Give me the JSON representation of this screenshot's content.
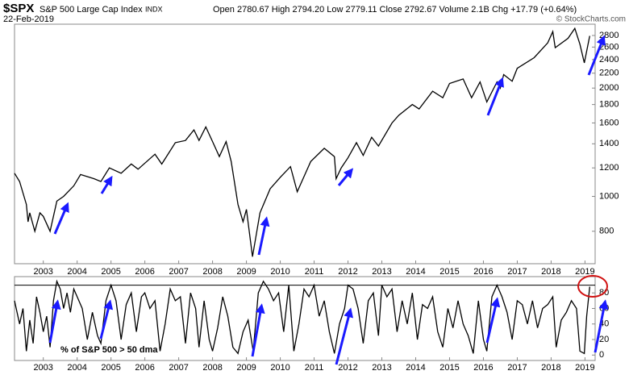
{
  "header": {
    "symbol": "$SPX",
    "name": "S&P 500 Large Cap Index",
    "exchange": "INDX",
    "quote": "Open 2780.67 High 2794.20 Low 2779.11 Close 2792.67 Volume 2.1B Chg +17.79 (+0.64%)",
    "date": "22-Feb-2019",
    "credit": "© StockCharts.com"
  },
  "chart_data": [
    {
      "type": "line",
      "log_scale": true,
      "grid": false,
      "xlim": [
        2002.15,
        2019.3
      ],
      "xticks": [
        2003,
        2004,
        2005,
        2006,
        2007,
        2008,
        2009,
        2010,
        2011,
        2012,
        2013,
        2014,
        2015,
        2016,
        2017,
        2018,
        2019
      ],
      "ylim": [
        650,
        3010
      ],
      "yticks": [
        800,
        1000,
        1200,
        1400,
        1600,
        1800,
        2000,
        2200,
        2400,
        2600,
        2800
      ],
      "x": [
        2002.15,
        2002.3,
        2002.5,
        2002.55,
        2002.6,
        2002.75,
        2002.9,
        2003.0,
        2003.2,
        2003.4,
        2003.6,
        2003.9,
        2004.1,
        2004.5,
        2004.7,
        2004.95,
        2005.3,
        2005.6,
        2005.8,
        2006.3,
        2006.5,
        2006.9,
        2007.2,
        2007.45,
        2007.6,
        2007.8,
        2008.0,
        2008.2,
        2008.4,
        2008.55,
        2008.75,
        2008.9,
        2009.0,
        2009.18,
        2009.4,
        2009.7,
        2010.0,
        2010.3,
        2010.5,
        2010.9,
        2011.3,
        2011.6,
        2011.65,
        2011.8,
        2012.0,
        2012.25,
        2012.45,
        2012.7,
        2012.9,
        2013.3,
        2013.5,
        2013.9,
        2014.1,
        2014.5,
        2014.8,
        2015.0,
        2015.4,
        2015.65,
        2015.9,
        2016.1,
        2016.4,
        2016.5,
        2016.6,
        2016.85,
        2017.0,
        2017.5,
        2017.9,
        2018.05,
        2018.12,
        2018.5,
        2018.7,
        2018.85,
        2018.98,
        2019.14
      ],
      "series": [
        {
          "color": "#000000",
          "values": [
            1160,
            1100,
            950,
            850,
            900,
            800,
            900,
            880,
            800,
            970,
            1000,
            1070,
            1150,
            1120,
            1100,
            1200,
            1160,
            1230,
            1190,
            1310,
            1230,
            1410,
            1430,
            1530,
            1430,
            1560,
            1420,
            1290,
            1420,
            1250,
            950,
            850,
            920,
            680,
            900,
            1050,
            1130,
            1210,
            1030,
            1250,
            1360,
            1290,
            1120,
            1200,
            1280,
            1410,
            1300,
            1460,
            1380,
            1600,
            1680,
            1800,
            1750,
            1960,
            1880,
            2060,
            2120,
            1880,
            2080,
            1830,
            2080,
            2000,
            2180,
            2090,
            2270,
            2430,
            2670,
            2870,
            2590,
            2750,
            2930,
            2650,
            2350,
            2793
          ]
        }
      ]
    },
    {
      "type": "line",
      "log_scale": false,
      "grid": false,
      "label": "% of S&P 500 > 50 dma",
      "threshold": 90,
      "xlim": [
        2002.15,
        2019.3
      ],
      "xticks": [
        2003,
        2004,
        2005,
        2006,
        2007,
        2008,
        2009,
        2010,
        2011,
        2012,
        2013,
        2014,
        2015,
        2016,
        2017,
        2018,
        2019
      ],
      "ylim": [
        -7,
        101
      ],
      "yticks": [
        0,
        20,
        40,
        60,
        80
      ],
      "x": [
        2002.15,
        2002.3,
        2002.4,
        2002.5,
        2002.6,
        2002.7,
        2002.8,
        2002.9,
        2003.0,
        2003.1,
        2003.2,
        2003.3,
        2003.4,
        2003.5,
        2003.6,
        2003.7,
        2003.8,
        2003.9,
        2004.0,
        2004.15,
        2004.3,
        2004.45,
        2004.6,
        2004.7,
        2004.85,
        2005.0,
        2005.15,
        2005.3,
        2005.45,
        2005.6,
        2005.75,
        2005.9,
        2006.0,
        2006.15,
        2006.3,
        2006.45,
        2006.6,
        2006.75,
        2006.9,
        2007.05,
        2007.2,
        2007.35,
        2007.5,
        2007.6,
        2007.75,
        2007.9,
        2008.0,
        2008.15,
        2008.3,
        2008.45,
        2008.6,
        2008.75,
        2008.9,
        2009.05,
        2009.2,
        2009.35,
        2009.5,
        2009.65,
        2009.8,
        2009.95,
        2010.1,
        2010.25,
        2010.4,
        2010.55,
        2010.7,
        2010.85,
        2011.0,
        2011.15,
        2011.3,
        2011.45,
        2011.6,
        2011.75,
        2011.9,
        2012.0,
        2012.15,
        2012.3,
        2012.45,
        2012.6,
        2012.75,
        2012.9,
        2013.0,
        2013.15,
        2013.3,
        2013.45,
        2013.6,
        2013.75,
        2013.9,
        2014.05,
        2014.2,
        2014.35,
        2014.5,
        2014.65,
        2014.8,
        2014.95,
        2015.1,
        2015.25,
        2015.4,
        2015.55,
        2015.7,
        2015.85,
        2016.0,
        2016.1,
        2016.25,
        2016.4,
        2016.55,
        2016.7,
        2016.85,
        2017.0,
        2017.15,
        2017.3,
        2017.45,
        2017.6,
        2017.75,
        2017.9,
        2018.05,
        2018.15,
        2018.3,
        2018.45,
        2018.6,
        2018.75,
        2018.85,
        2018.98,
        2019.05,
        2019.14
      ],
      "series": [
        {
          "color": "#000000",
          "values": [
            70,
            40,
            60,
            5,
            45,
            15,
            75,
            55,
            30,
            50,
            10,
            70,
            95,
            85,
            60,
            80,
            55,
            85,
            75,
            60,
            20,
            55,
            25,
            15,
            70,
            90,
            70,
            20,
            65,
            80,
            30,
            75,
            80,
            60,
            70,
            5,
            40,
            85,
            70,
            75,
            15,
            80,
            60,
            10,
            70,
            20,
            5,
            35,
            75,
            50,
            10,
            2,
            30,
            45,
            5,
            80,
            95,
            85,
            70,
            80,
            30,
            90,
            5,
            40,
            85,
            75,
            90,
            50,
            70,
            30,
            2,
            40,
            60,
            90,
            85,
            60,
            15,
            70,
            80,
            25,
            90,
            75,
            85,
            30,
            70,
            40,
            80,
            20,
            65,
            60,
            75,
            30,
            10,
            60,
            35,
            70,
            40,
            25,
            2,
            70,
            20,
            5,
            75,
            90,
            75,
            55,
            20,
            70,
            65,
            40,
            70,
            35,
            60,
            65,
            75,
            10,
            45,
            55,
            70,
            60,
            5,
            2,
            50,
            88
          ]
        }
      ]
    }
  ]
}
